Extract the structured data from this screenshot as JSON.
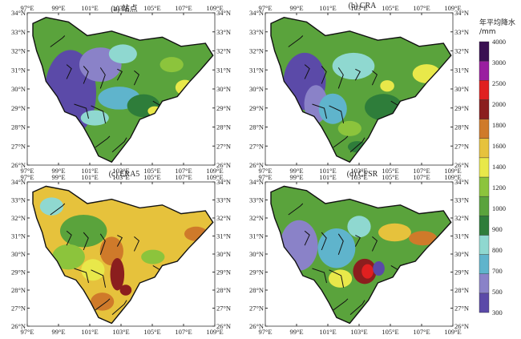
{
  "panels": [
    {
      "title": "(a) 站点"
    },
    {
      "title": "(b) CRA"
    },
    {
      "title": "(c) ERA5"
    },
    {
      "title": "(d) CFSR"
    }
  ],
  "axes": {
    "lon_labels": [
      "97°E",
      "99°E",
      "101°E",
      "103°E",
      "105°E",
      "107°E",
      "109°E"
    ],
    "lat_labels": [
      "26°N",
      "27°N",
      "28°N",
      "29°N",
      "30°N",
      "31°N",
      "32°N",
      "33°N",
      "34°N"
    ]
  },
  "legend": {
    "title_line1": "年平均降水",
    "title_line2": "/mm",
    "levels": [
      "300",
      "500",
      "700",
      "800",
      "900",
      "1000",
      "1200",
      "1400",
      "1600",
      "1800",
      "2000",
      "2500",
      "3000",
      "4000"
    ],
    "colors": [
      "#5b4aa8",
      "#8a82c8",
      "#5fb4cc",
      "#8fd8d0",
      "#2e7d3a",
      "#5aa33c",
      "#8cc43c",
      "#e8e84a",
      "#e6c23c",
      "#cf7a2a",
      "#8b1e1e",
      "#e02020",
      "#9a1ea0",
      "#3a1052"
    ]
  },
  "maps": {
    "a": {
      "base": "#5aa33c",
      "patches": [
        [
          "#5b4aa8",
          0.12,
          0.3,
          0.22,
          0.45
        ],
        [
          "#8a82c8",
          0.3,
          0.25,
          0.18,
          0.18
        ],
        [
          "#8fd8d0",
          0.45,
          0.22,
          0.12,
          0.1
        ],
        [
          "#5fb4cc",
          0.4,
          0.5,
          0.18,
          0.12
        ],
        [
          "#8cc43c",
          0.72,
          0.3,
          0.1,
          0.08
        ],
        [
          "#e8e84a",
          0.8,
          0.45,
          0.08,
          0.08
        ],
        [
          "#2e7d3a",
          0.55,
          0.55,
          0.14,
          0.12
        ],
        [
          "#8fd8d0",
          0.3,
          0.65,
          0.12,
          0.08
        ],
        [
          "#e8e84a",
          0.65,
          0.62,
          0.06,
          0.05
        ],
        [
          "#8cc43c",
          0.55,
          0.8,
          0.1,
          0.08
        ]
      ]
    },
    "b": {
      "base": "#5aa33c",
      "patches": [
        [
          "#5b4aa8",
          0.12,
          0.3,
          0.18,
          0.3
        ],
        [
          "#8a82c8",
          0.22,
          0.5,
          0.1,
          0.2
        ],
        [
          "#8fd8d0",
          0.38,
          0.28,
          0.18,
          0.14
        ],
        [
          "#5fb4cc",
          0.3,
          0.55,
          0.12,
          0.16
        ],
        [
          "#e8e84a",
          0.8,
          0.35,
          0.12,
          0.1
        ],
        [
          "#2e7d3a",
          0.55,
          0.55,
          0.16,
          0.14
        ],
        [
          "#8cc43c",
          0.4,
          0.72,
          0.1,
          0.08
        ],
        [
          "#e8e84a",
          0.62,
          0.45,
          0.06,
          0.06
        ],
        [
          "#2e7d3a",
          0.45,
          0.85,
          0.08,
          0.06
        ]
      ]
    },
    "c": {
      "base": "#e6c23c",
      "patches": [
        [
          "#8fd8d0",
          0.08,
          0.12,
          0.1,
          0.1
        ],
        [
          "#5aa33c",
          0.2,
          0.25,
          0.2,
          0.18
        ],
        [
          "#8cc43c",
          0.15,
          0.45,
          0.14,
          0.14
        ],
        [
          "#cf7a2a",
          0.4,
          0.4,
          0.1,
          0.16
        ],
        [
          "#8b1e1e",
          0.45,
          0.55,
          0.06,
          0.18
        ],
        [
          "#e8e84a",
          0.3,
          0.55,
          0.1,
          0.12
        ],
        [
          "#cf7a2a",
          0.85,
          0.32,
          0.1,
          0.08
        ],
        [
          "#8cc43c",
          0.62,
          0.48,
          0.1,
          0.08
        ],
        [
          "#cf7a2a",
          0.35,
          0.78,
          0.1,
          0.1
        ],
        [
          "#8b1e1e",
          0.5,
          0.72,
          0.05,
          0.06
        ]
      ]
    },
    "d": {
      "base": "#5aa33c",
      "patches": [
        [
          "#8a82c8",
          0.1,
          0.3,
          0.16,
          0.28
        ],
        [
          "#5fb4cc",
          0.3,
          0.35,
          0.16,
          0.22
        ],
        [
          "#8fd8d0",
          0.45,
          0.25,
          0.1,
          0.12
        ],
        [
          "#e6c23c",
          0.62,
          0.3,
          0.14,
          0.1
        ],
        [
          "#cf7a2a",
          0.78,
          0.35,
          0.12,
          0.08
        ],
        [
          "#8b1e1e",
          0.48,
          0.55,
          0.1,
          0.14
        ],
        [
          "#e02020",
          0.52,
          0.58,
          0.05,
          0.08
        ],
        [
          "#5b4aa8",
          0.58,
          0.56,
          0.05,
          0.08
        ],
        [
          "#e8e84a",
          0.35,
          0.62,
          0.1,
          0.1
        ],
        [
          "#cf7a2a",
          0.7,
          0.62,
          0.1,
          0.08
        ],
        [
          "#8b1e1e",
          0.78,
          0.62,
          0.06,
          0.05
        ]
      ]
    }
  }
}
